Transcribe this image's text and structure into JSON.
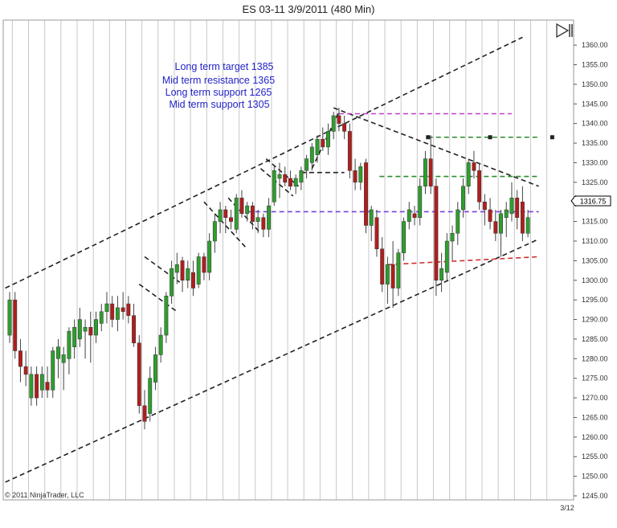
{
  "chart_data": {
    "type": "candlestick",
    "title": "ES 03-11  3/9/2011 (480 Min)",
    "ylim": [
      1245,
      1362
    ],
    "y_ticks": [
      1245,
      1250,
      1255,
      1260,
      1265,
      1270,
      1275,
      1280,
      1285,
      1290,
      1295,
      1300,
      1305,
      1310,
      1315,
      1320,
      1325,
      1330,
      1335,
      1340,
      1345,
      1350,
      1355,
      1360
    ],
    "y_tick_labels": [
      "1245.00",
      "1250.00",
      "1255.00",
      "1260.00",
      "1265.00",
      "1270.00",
      "1275.00",
      "1280.00",
      "1285.00",
      "1290.00",
      "1295.00",
      "1300.00",
      "1305.00",
      "1310.00",
      "1315.00",
      "1320.00",
      "1325.00",
      "1330.00",
      "1335.00",
      "1340.00",
      "1345.00",
      "1350.00",
      "1355.00",
      "1360.00"
    ],
    "x_label": "3/12",
    "current_price_label": "1316.75",
    "copyright": "© 2011 NinjaTrader, LLC",
    "up_color": "#2e9e2e",
    "down_color": "#b01e1e",
    "annotations": [
      "Long term target 1385",
      "Mid term resistance 1365",
      "Long term support 1265",
      "Mid term support 1305"
    ],
    "candles": [
      {
        "o": 1286,
        "h": 1297,
        "l": 1284,
        "c": 1295
      },
      {
        "o": 1295,
        "h": 1297,
        "l": 1280,
        "c": 1282
      },
      {
        "o": 1282,
        "h": 1285,
        "l": 1274,
        "c": 1278
      },
      {
        "o": 1278,
        "h": 1282,
        "l": 1273,
        "c": 1276
      },
      {
        "o": 1270,
        "h": 1278,
        "l": 1268,
        "c": 1276
      },
      {
        "o": 1276,
        "h": 1278,
        "l": 1268,
        "c": 1270
      },
      {
        "o": 1272,
        "h": 1278,
        "l": 1270,
        "c": 1276
      },
      {
        "o": 1274,
        "h": 1278,
        "l": 1270,
        "c": 1272
      },
      {
        "o": 1272,
        "h": 1283,
        "l": 1270,
        "c": 1282
      },
      {
        "o": 1280,
        "h": 1285,
        "l": 1275,
        "c": 1283
      },
      {
        "o": 1279,
        "h": 1283,
        "l": 1272,
        "c": 1281
      },
      {
        "o": 1280,
        "h": 1288,
        "l": 1276,
        "c": 1287
      },
      {
        "o": 1283,
        "h": 1290,
        "l": 1280,
        "c": 1288
      },
      {
        "o": 1285,
        "h": 1293,
        "l": 1283,
        "c": 1290
      },
      {
        "o": 1287,
        "h": 1290,
        "l": 1280,
        "c": 1288
      },
      {
        "o": 1288,
        "h": 1292,
        "l": 1279,
        "c": 1286
      },
      {
        "o": 1286,
        "h": 1292,
        "l": 1284,
        "c": 1290
      },
      {
        "o": 1289,
        "h": 1294,
        "l": 1287,
        "c": 1292
      },
      {
        "o": 1292,
        "h": 1297,
        "l": 1289,
        "c": 1294
      },
      {
        "o": 1294,
        "h": 1296,
        "l": 1288,
        "c": 1290
      },
      {
        "o": 1290,
        "h": 1296,
        "l": 1287,
        "c": 1293
      },
      {
        "o": 1293,
        "h": 1297,
        "l": 1290,
        "c": 1292
      },
      {
        "o": 1294,
        "h": 1296,
        "l": 1289,
        "c": 1291
      },
      {
        "o": 1291,
        "h": 1294,
        "l": 1283,
        "c": 1284
      },
      {
        "o": 1284,
        "h": 1286,
        "l": 1266,
        "c": 1268
      },
      {
        "o": 1268,
        "h": 1272,
        "l": 1262,
        "c": 1264
      },
      {
        "o": 1266,
        "h": 1278,
        "l": 1264,
        "c": 1275
      },
      {
        "o": 1274,
        "h": 1283,
        "l": 1272,
        "c": 1281
      },
      {
        "o": 1281,
        "h": 1288,
        "l": 1279,
        "c": 1286
      },
      {
        "o": 1286,
        "h": 1297,
        "l": 1284,
        "c": 1296
      },
      {
        "o": 1296,
        "h": 1305,
        "l": 1294,
        "c": 1303
      },
      {
        "o": 1302,
        "h": 1307,
        "l": 1299,
        "c": 1304
      },
      {
        "o": 1305,
        "h": 1306,
        "l": 1297,
        "c": 1300
      },
      {
        "o": 1300,
        "h": 1305,
        "l": 1298,
        "c": 1303
      },
      {
        "o": 1302,
        "h": 1305,
        "l": 1296,
        "c": 1298
      },
      {
        "o": 1299,
        "h": 1307,
        "l": 1298,
        "c": 1306
      },
      {
        "o": 1306,
        "h": 1307,
        "l": 1300,
        "c": 1302
      },
      {
        "o": 1302,
        "h": 1312,
        "l": 1300,
        "c": 1310
      },
      {
        "o": 1310,
        "h": 1317,
        "l": 1307,
        "c": 1315
      },
      {
        "o": 1315,
        "h": 1320,
        "l": 1312,
        "c": 1318
      },
      {
        "o": 1318,
        "h": 1319,
        "l": 1312,
        "c": 1316
      },
      {
        "o": 1316,
        "h": 1318,
        "l": 1313,
        "c": 1315
      },
      {
        "o": 1313,
        "h": 1322,
        "l": 1312,
        "c": 1321
      },
      {
        "o": 1321,
        "h": 1323,
        "l": 1316,
        "c": 1317
      },
      {
        "o": 1317,
        "h": 1320,
        "l": 1315,
        "c": 1319
      },
      {
        "o": 1319,
        "h": 1320,
        "l": 1313,
        "c": 1315
      },
      {
        "o": 1315,
        "h": 1318,
        "l": 1312,
        "c": 1316
      },
      {
        "o": 1316,
        "h": 1317,
        "l": 1311,
        "c": 1313
      },
      {
        "o": 1313,
        "h": 1321,
        "l": 1311,
        "c": 1319
      },
      {
        "o": 1320,
        "h": 1329,
        "l": 1319,
        "c": 1328
      },
      {
        "o": 1326,
        "h": 1330,
        "l": 1321,
        "c": 1327
      },
      {
        "o": 1327,
        "h": 1329,
        "l": 1324,
        "c": 1325
      },
      {
        "o": 1326,
        "h": 1328,
        "l": 1323,
        "c": 1324
      },
      {
        "o": 1324,
        "h": 1327,
        "l": 1322,
        "c": 1326
      },
      {
        "o": 1325,
        "h": 1329,
        "l": 1323,
        "c": 1328
      },
      {
        "o": 1328,
        "h": 1332,
        "l": 1326,
        "c": 1331
      },
      {
        "o": 1330,
        "h": 1335,
        "l": 1328,
        "c": 1334
      },
      {
        "o": 1332,
        "h": 1337,
        "l": 1330,
        "c": 1336
      },
      {
        "o": 1336,
        "h": 1339,
        "l": 1333,
        "c": 1334
      },
      {
        "o": 1334,
        "h": 1340,
        "l": 1332,
        "c": 1338
      },
      {
        "o": 1338,
        "h": 1343,
        "l": 1336,
        "c": 1342
      },
      {
        "o": 1342,
        "h": 1344,
        "l": 1338,
        "c": 1340
      },
      {
        "o": 1340,
        "h": 1342,
        "l": 1336,
        "c": 1338
      },
      {
        "o": 1338,
        "h": 1340,
        "l": 1326,
        "c": 1328
      },
      {
        "o": 1328,
        "h": 1331,
        "l": 1323,
        "c": 1325
      },
      {
        "o": 1325,
        "h": 1330,
        "l": 1323,
        "c": 1329
      },
      {
        "o": 1330,
        "h": 1331,
        "l": 1312,
        "c": 1314
      },
      {
        "o": 1314,
        "h": 1319,
        "l": 1310,
        "c": 1318
      },
      {
        "o": 1316,
        "h": 1318,
        "l": 1306,
        "c": 1308
      },
      {
        "o": 1308,
        "h": 1311,
        "l": 1297,
        "c": 1299
      },
      {
        "o": 1299,
        "h": 1306,
        "l": 1294,
        "c": 1304
      },
      {
        "o": 1304,
        "h": 1310,
        "l": 1293,
        "c": 1298
      },
      {
        "o": 1298,
        "h": 1308,
        "l": 1296,
        "c": 1307
      },
      {
        "o": 1307,
        "h": 1316,
        "l": 1305,
        "c": 1315
      },
      {
        "o": 1315,
        "h": 1320,
        "l": 1313,
        "c": 1318
      },
      {
        "o": 1317,
        "h": 1319,
        "l": 1314,
        "c": 1316
      },
      {
        "o": 1316,
        "h": 1326,
        "l": 1314,
        "c": 1324
      },
      {
        "o": 1324,
        "h": 1333,
        "l": 1322,
        "c": 1331
      },
      {
        "o": 1331,
        "h": 1337,
        "l": 1322,
        "c": 1324
      },
      {
        "o": 1324,
        "h": 1326,
        "l": 1296,
        "c": 1300
      },
      {
        "o": 1300,
        "h": 1307,
        "l": 1297,
        "c": 1303
      },
      {
        "o": 1302,
        "h": 1312,
        "l": 1300,
        "c": 1310
      },
      {
        "o": 1310,
        "h": 1314,
        "l": 1305,
        "c": 1312
      },
      {
        "o": 1312,
        "h": 1320,
        "l": 1309,
        "c": 1318
      },
      {
        "o": 1318,
        "h": 1326,
        "l": 1316,
        "c": 1324
      },
      {
        "o": 1324,
        "h": 1331,
        "l": 1322,
        "c": 1330
      },
      {
        "o": 1330,
        "h": 1333,
        "l": 1326,
        "c": 1328
      },
      {
        "o": 1328,
        "h": 1330,
        "l": 1318,
        "c": 1320
      },
      {
        "o": 1320,
        "h": 1322,
        "l": 1314,
        "c": 1318
      },
      {
        "o": 1318,
        "h": 1321,
        "l": 1313,
        "c": 1315
      },
      {
        "o": 1315,
        "h": 1318,
        "l": 1310,
        "c": 1312
      },
      {
        "o": 1312,
        "h": 1318,
        "l": 1306,
        "c": 1317
      },
      {
        "o": 1316,
        "h": 1320,
        "l": 1311,
        "c": 1318
      },
      {
        "o": 1317,
        "h": 1325,
        "l": 1315,
        "c": 1321
      },
      {
        "o": 1321,
        "h": 1323,
        "l": 1313,
        "c": 1316
      },
      {
        "o": 1320,
        "h": 1324,
        "l": 1310,
        "c": 1312
      },
      {
        "o": 1312,
        "h": 1318,
        "l": 1311,
        "c": 1316
      }
    ],
    "trendlines": [
      {
        "role": "channel-upper",
        "color": "#222222",
        "dash": "6,4",
        "points": [
          [
            -0.8,
            1298.0
          ],
          [
            95.0,
            1362.0
          ]
        ]
      },
      {
        "role": "channel-lower",
        "color": "#222222",
        "dash": "6,4",
        "points": [
          [
            -0.8,
            1248.5
          ],
          [
            98.0,
            1310.5
          ]
        ]
      },
      {
        "role": "descending-resistance",
        "color": "#222222",
        "dash": "6,4",
        "points": [
          [
            60.0,
            1344.0
          ],
          [
            98.0,
            1324.0
          ]
        ]
      },
      {
        "role": "magenta-level",
        "color": "#c040c0",
        "dash": "6,4",
        "points": [
          [
            61.0,
            1342.5
          ],
          [
            93.0,
            1342.5
          ]
        ]
      },
      {
        "role": "green-level-upper",
        "color": "#2e8b2e",
        "dash": "6,4",
        "points": [
          [
            77.5,
            1336.5
          ],
          [
            98.0,
            1336.5
          ]
        ]
      },
      {
        "role": "green-level-lower",
        "color": "#2e8b2e",
        "dash": "6,4",
        "points": [
          [
            68.5,
            1326.5
          ],
          [
            98.0,
            1326.5
          ]
        ]
      },
      {
        "role": "purple-level",
        "color": "#7a40e0",
        "dash": "6,4",
        "points": [
          [
            44.0,
            1317.5
          ],
          [
            98.0,
            1317.5
          ]
        ]
      },
      {
        "role": "black-level",
        "color": "#222222",
        "dash": "6,4",
        "points": [
          [
            54.0,
            1327.5
          ],
          [
            62.0,
            1327.5
          ]
        ]
      },
      {
        "role": "red-level",
        "color": "#d03030",
        "dash": "6,4",
        "points": [
          [
            70.0,
            1304.0
          ],
          [
            98.0,
            1306.0
          ]
        ]
      },
      {
        "role": "flag-a-top",
        "color": "#222222",
        "dash": "6,4",
        "points": [
          [
            25.0,
            1306.0
          ],
          [
            31.5,
            1299.5
          ]
        ]
      },
      {
        "role": "flag-a-bottom",
        "color": "#222222",
        "dash": "6,4",
        "points": [
          [
            24.0,
            1299.0
          ],
          [
            31.0,
            1292.0
          ]
        ]
      },
      {
        "role": "flag-b-top",
        "color": "#222222",
        "dash": "6,4",
        "points": [
          [
            40.5,
            1321.0
          ],
          [
            46.5,
            1312.0
          ]
        ]
      },
      {
        "role": "flag-b-bottom",
        "color": "#222222",
        "dash": "6,4",
        "points": [
          [
            36.0,
            1320.0
          ],
          [
            44.0,
            1308.0
          ]
        ]
      },
      {
        "role": "flag-c-top",
        "color": "#222222",
        "dash": "6,4",
        "points": [
          [
            47.5,
            1331.0
          ],
          [
            53.5,
            1324.0
          ]
        ]
      },
      {
        "role": "flag-c-bottom",
        "color": "#222222",
        "dash": "6,4",
        "points": [
          [
            46.5,
            1328.5
          ],
          [
            52.5,
            1321.5
          ]
        ]
      },
      {
        "role": "rally-line",
        "color": "#222222",
        "dash": "6,4",
        "points": [
          [
            56.0,
            1328.5
          ],
          [
            61.0,
            1343.0
          ]
        ]
      }
    ],
    "markers": [
      {
        "color": "#222222",
        "points": [
          [
            77.5,
            1336.5
          ],
          [
            89.0,
            1336.5
          ],
          [
            100.5,
            1336.5
          ]
        ]
      }
    ],
    "grid": true,
    "legend": "none"
  }
}
